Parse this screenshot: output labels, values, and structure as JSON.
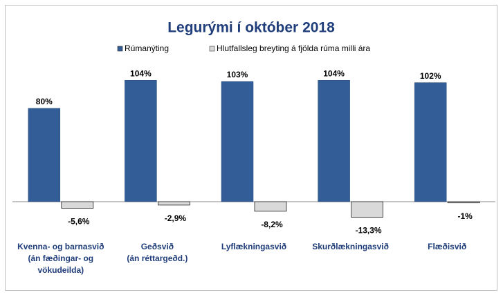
{
  "chart_data": {
    "type": "bar",
    "title": "Legurými  í  október 2018",
    "categories": [
      "Kvenna- og barnasvið\n(án fæðingar- og\nvökudeilda)",
      "Geðsvið\n(án réttargeðd.)",
      "Lyflækningasvið",
      "Skurðlækningasvið",
      "Flæðisvið"
    ],
    "series": [
      {
        "name": "Rúmanýting",
        "color": "#335d96",
        "values": [
          80,
          104,
          103,
          104,
          102
        ],
        "value_labels": [
          "80%",
          "104%",
          "103%",
          "104%",
          "102%"
        ]
      },
      {
        "name": "Hlutfallsleg breyting á fjölda rúma milli ára",
        "color": "#d9d9d9",
        "values": [
          -5.6,
          -2.9,
          -8.2,
          -13.3,
          -1
        ],
        "value_labels": [
          "-5,6%",
          "-2,9%",
          "-8,2%",
          "-13,3%",
          "-1%"
        ]
      }
    ]
  }
}
